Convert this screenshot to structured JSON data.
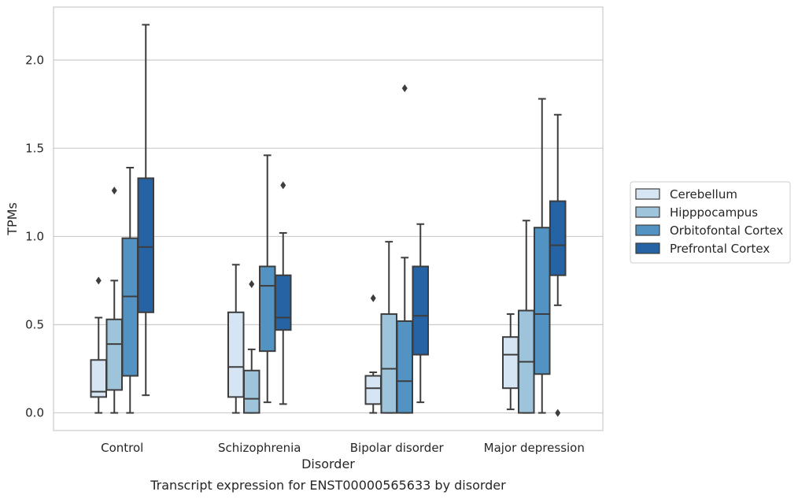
{
  "caption": "Transcript expression for ENST00000565633 by disorder",
  "chart_data": {
    "type": "box",
    "xlabel": "Disorder",
    "ylabel": "TPMs",
    "ylim": [
      -0.1,
      2.3
    ],
    "yticks": [
      "0.0",
      "0.5",
      "1.0",
      "1.5",
      "2.0"
    ],
    "grid": "horizontal",
    "legend_position": "right",
    "categories": [
      "Control",
      "Schizophrenia",
      "Bipolar disorder",
      "Major depression"
    ],
    "series": [
      {
        "name": "Cerebellum",
        "color": "#d6e5f3",
        "boxes": [
          {
            "whislo": 0.0,
            "q1": 0.09,
            "med": 0.12,
            "q3": 0.3,
            "whishi": 0.54,
            "fliers": [
              0.75
            ]
          },
          {
            "whislo": 0.0,
            "q1": 0.09,
            "med": 0.26,
            "q3": 0.57,
            "whishi": 0.84,
            "fliers": []
          },
          {
            "whislo": 0.0,
            "q1": 0.05,
            "med": 0.14,
            "q3": 0.21,
            "whishi": 0.23,
            "fliers": [
              0.65
            ]
          },
          {
            "whislo": 0.02,
            "q1": 0.14,
            "med": 0.33,
            "q3": 0.43,
            "whishi": 0.56,
            "fliers": []
          }
        ]
      },
      {
        "name": "Hipppocampus",
        "color": "#9ec4dc",
        "boxes": [
          {
            "whislo": 0.0,
            "q1": 0.13,
            "med": 0.39,
            "q3": 0.53,
            "whishi": 0.75,
            "fliers": [
              1.26
            ]
          },
          {
            "whislo": 0.0,
            "q1": 0.0,
            "med": 0.08,
            "q3": 0.24,
            "whishi": 0.36,
            "fliers": [
              0.73
            ]
          },
          {
            "whislo": 0.0,
            "q1": 0.0,
            "med": 0.25,
            "q3": 0.56,
            "whishi": 0.97,
            "fliers": []
          },
          {
            "whislo": 0.0,
            "q1": 0.0,
            "med": 0.29,
            "q3": 0.58,
            "whishi": 1.09,
            "fliers": []
          }
        ]
      },
      {
        "name": "Orbitofontal Cortex",
        "color": "#5393c3",
        "boxes": [
          {
            "whislo": 0.0,
            "q1": 0.21,
            "med": 0.66,
            "q3": 0.99,
            "whishi": 1.39,
            "fliers": []
          },
          {
            "whislo": 0.06,
            "q1": 0.35,
            "med": 0.72,
            "q3": 0.83,
            "whishi": 1.46,
            "fliers": []
          },
          {
            "whislo": 0.0,
            "q1": 0.0,
            "med": 0.18,
            "q3": 0.52,
            "whishi": 0.88,
            "fliers": [
              1.84
            ]
          },
          {
            "whislo": 0.0,
            "q1": 0.22,
            "med": 0.56,
            "q3": 1.05,
            "whishi": 1.78,
            "fliers": []
          }
        ]
      },
      {
        "name": "Prefrontal Cortex",
        "color": "#2563a4",
        "boxes": [
          {
            "whislo": 0.1,
            "q1": 0.57,
            "med": 0.94,
            "q3": 1.33,
            "whishi": 2.2,
            "fliers": []
          },
          {
            "whislo": 0.05,
            "q1": 0.47,
            "med": 0.54,
            "q3": 0.78,
            "whishi": 1.02,
            "fliers": [
              1.29
            ]
          },
          {
            "whislo": 0.06,
            "q1": 0.33,
            "med": 0.55,
            "q3": 0.83,
            "whishi": 1.07,
            "fliers": []
          },
          {
            "whislo": 0.61,
            "q1": 0.78,
            "med": 0.95,
            "q3": 1.2,
            "whishi": 1.69,
            "fliers": [
              0.0
            ]
          }
        ]
      }
    ]
  }
}
